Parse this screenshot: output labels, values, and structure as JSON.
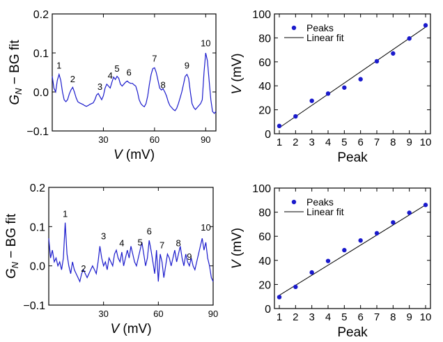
{
  "chart_data": [
    {
      "type": "line",
      "panel": "top-left",
      "xlabel": "V (mV)",
      "ylabel": "G_N − BG fit",
      "xlim": [
        0,
        96
      ],
      "ylim": [
        -0.1,
        0.2
      ],
      "x_ticks": [
        30,
        60,
        90
      ],
      "y_ticks": [
        -0.1,
        0.0,
        0.1,
        0.2
      ],
      "y_tick_labels": [
        "−0.1",
        "0.0",
        "0.1",
        "0.2"
      ],
      "line_color": "#1a1acc",
      "series": [
        {
          "name": "",
          "x": [
            0,
            1,
            2,
            3,
            4,
            5,
            6,
            7,
            8,
            9,
            10,
            11,
            12,
            13,
            14,
            15,
            16,
            17,
            18,
            19,
            20,
            21,
            22,
            23,
            24,
            25,
            26,
            27,
            28,
            29,
            30,
            31,
            32,
            33,
            34,
            35,
            36,
            37,
            38,
            39,
            40,
            41,
            42,
            43,
            44,
            45,
            46,
            47,
            48,
            49,
            50,
            51,
            52,
            53,
            54,
            55,
            56,
            57,
            58,
            59,
            60,
            61,
            62,
            63,
            64,
            65,
            66,
            67,
            68,
            69,
            70,
            71,
            72,
            73,
            74,
            75,
            76,
            77,
            78,
            79,
            80,
            81,
            82,
            83,
            84,
            85,
            86,
            87,
            88,
            89,
            90,
            91,
            92,
            93,
            94,
            95,
            96
          ],
          "y": [
            0.04,
            0.01,
            0.0,
            0.03,
            0.045,
            0.03,
            0.0,
            -0.02,
            -0.025,
            -0.02,
            -0.005,
            0.005,
            0.012,
            0.0,
            -0.015,
            -0.025,
            -0.028,
            -0.03,
            -0.032,
            -0.035,
            -0.037,
            -0.035,
            -0.032,
            -0.03,
            -0.028,
            -0.02,
            -0.008,
            -0.004,
            -0.012,
            -0.02,
            -0.01,
            0.01,
            0.02,
            0.015,
            0.01,
            0.025,
            0.038,
            0.032,
            0.04,
            0.035,
            0.02,
            0.015,
            0.02,
            0.025,
            0.028,
            0.024,
            0.022,
            0.022,
            0.018,
            0.015,
            0.0,
            -0.02,
            -0.03,
            -0.035,
            -0.038,
            -0.03,
            -0.01,
            0.02,
            0.045,
            0.06,
            0.062,
            0.05,
            0.03,
            0.01,
            0.005,
            0.008,
            0.0,
            -0.01,
            -0.025,
            -0.035,
            -0.04,
            -0.045,
            -0.048,
            -0.042,
            -0.03,
            -0.015,
            0.0,
            0.02,
            0.04,
            0.045,
            0.035,
            0.0,
            -0.03,
            -0.04,
            -0.045,
            -0.04,
            -0.035,
            -0.03,
            -0.02,
            0.05,
            0.1,
            0.08,
            0.03,
            -0.02,
            -0.05,
            -0.055,
            -0.05
          ]
        }
      ],
      "peak_labels": [
        {
          "label": "1",
          "x": 4,
          "y": 0.06
        },
        {
          "label": "2",
          "x": 12,
          "y": 0.025
        },
        {
          "label": "3",
          "x": 28,
          "y": 0.005
        },
        {
          "label": "4",
          "x": 34,
          "y": 0.034
        },
        {
          "label": "5",
          "x": 38,
          "y": 0.052
        },
        {
          "label": "6",
          "x": 45,
          "y": 0.042
        },
        {
          "label": "7",
          "x": 60,
          "y": 0.078
        },
        {
          "label": "8",
          "x": 65,
          "y": 0.01
        },
        {
          "label": "9",
          "x": 79,
          "y": 0.06
        },
        {
          "label": "10",
          "x": 90,
          "y": 0.117
        }
      ]
    },
    {
      "type": "scatter",
      "panel": "top-right",
      "xlabel": "Peak",
      "ylabel": "V (mV)",
      "xlim": [
        0.7,
        10.3
      ],
      "ylim": [
        0,
        100
      ],
      "x_ticks": [
        1,
        2,
        3,
        4,
        5,
        6,
        7,
        8,
        9,
        10
      ],
      "y_ticks": [
        0,
        20,
        40,
        60,
        80,
        100
      ],
      "legend_position": "top-left",
      "point_color": "#1a1acc",
      "series": [
        {
          "name": "Peaks",
          "x": [
            1,
            2,
            3,
            4,
            5,
            6,
            7,
            8,
            9,
            10
          ],
          "y": [
            6.5,
            14.5,
            27.5,
            33.5,
            38.5,
            45.5,
            60.5,
            67,
            79.5,
            90.5
          ]
        }
      ],
      "fit": {
        "name": "Linear fit",
        "x": [
          1,
          10
        ],
        "y": [
          5,
          89
        ]
      }
    },
    {
      "type": "line",
      "panel": "bottom-left",
      "xlabel": "V (mV)",
      "ylabel": "G_N − BG fit",
      "xlim": [
        0,
        90
      ],
      "ylim": [
        -0.1,
        0.2
      ],
      "x_ticks": [
        30,
        60,
        90
      ],
      "y_ticks": [
        -0.1,
        0.0,
        0.1,
        0.2
      ],
      "y_tick_labels": [
        "−0.1",
        "0.0",
        "0.1",
        "0.2"
      ],
      "line_color": "#1a1acc",
      "series": [
        {
          "name": "",
          "x": [
            0,
            1,
            2,
            3,
            4,
            5,
            6,
            7,
            8,
            9,
            10,
            11,
            12,
            13,
            14,
            15,
            16,
            17,
            18,
            19,
            20,
            21,
            22,
            23,
            24,
            25,
            26,
            27,
            28,
            29,
            30,
            31,
            32,
            33,
            34,
            35,
            36,
            37,
            38,
            39,
            40,
            41,
            42,
            43,
            44,
            45,
            46,
            47,
            48,
            49,
            50,
            51,
            52,
            53,
            54,
            55,
            56,
            57,
            58,
            59,
            60,
            61,
            62,
            63,
            64,
            65,
            66,
            67,
            68,
            69,
            70,
            71,
            72,
            73,
            74,
            75,
            76,
            77,
            78,
            79,
            80,
            81,
            82,
            83,
            84,
            85,
            86,
            87,
            88,
            89,
            90
          ],
          "y": [
            0.07,
            0.02,
            0.04,
            0.01,
            0.02,
            0.0,
            0.01,
            -0.01,
            0.02,
            0.11,
            0.03,
            0.0,
            -0.02,
            0.01,
            -0.01,
            -0.02,
            -0.03,
            -0.04,
            -0.02,
            -0.01,
            -0.02,
            -0.03,
            -0.02,
            -0.01,
            0.0,
            -0.01,
            -0.02,
            0.01,
            0.05,
            0.02,
            0.0,
            0.01,
            -0.01,
            0.02,
            0.01,
            0.0,
            0.03,
            0.04,
            0.02,
            0.01,
            0.035,
            0.0,
            0.02,
            0.04,
            0.02,
            0.05,
            0.03,
            0.01,
            0.0,
            0.02,
            0.04,
            0.06,
            0.03,
            0.0,
            0.02,
            0.065,
            0.04,
            0.01,
            -0.02,
            0.04,
            -0.04,
            0.03,
            0.01,
            -0.03,
            0.0,
            0.03,
            0.02,
            0.0,
            0.02,
            0.04,
            0.01,
            0.03,
            0.05,
            0.02,
            0.0,
            0.03,
            0.01,
            0.0,
            0.02,
            0.0,
            -0.01,
            0.01,
            0.03,
            0.05,
            0.07,
            0.04,
            0.06,
            0.02,
            0.0,
            -0.03,
            -0.04
          ]
        }
      ],
      "peak_labels": [
        {
          "label": "1",
          "x": 9,
          "y": 0.125
        },
        {
          "label": "2",
          "x": 19,
          "y": -0.015
        },
        {
          "label": "3",
          "x": 30,
          "y": 0.068
        },
        {
          "label": "4",
          "x": 40,
          "y": 0.05
        },
        {
          "label": "5",
          "x": 50,
          "y": 0.052
        },
        {
          "label": "6",
          "x": 55,
          "y": 0.08
        },
        {
          "label": "7",
          "x": 62,
          "y": 0.045
        },
        {
          "label": "8",
          "x": 71,
          "y": 0.05
        },
        {
          "label": "9",
          "x": 77,
          "y": 0.015
        },
        {
          "label": "10",
          "x": 86,
          "y": 0.09
        }
      ]
    },
    {
      "type": "scatter",
      "panel": "bottom-right",
      "xlabel": "Peak",
      "ylabel": "V (mV)",
      "xlim": [
        0.7,
        10.3
      ],
      "ylim": [
        0,
        100
      ],
      "x_ticks": [
        1,
        2,
        3,
        4,
        5,
        6,
        7,
        8,
        9,
        10
      ],
      "y_ticks": [
        0,
        20,
        40,
        60,
        80,
        100
      ],
      "legend_position": "top-left",
      "point_color": "#1a1acc",
      "series": [
        {
          "name": "Peaks",
          "x": [
            1,
            2,
            3,
            4,
            5,
            6,
            7,
            8,
            9,
            10
          ],
          "y": [
            9.5,
            18,
            30,
            39.5,
            48.5,
            56.5,
            62.5,
            71.5,
            79.5,
            86
          ]
        }
      ],
      "fit": {
        "name": "Linear fit",
        "x": [
          1,
          10
        ],
        "y": [
          11,
          86
        ]
      }
    }
  ]
}
